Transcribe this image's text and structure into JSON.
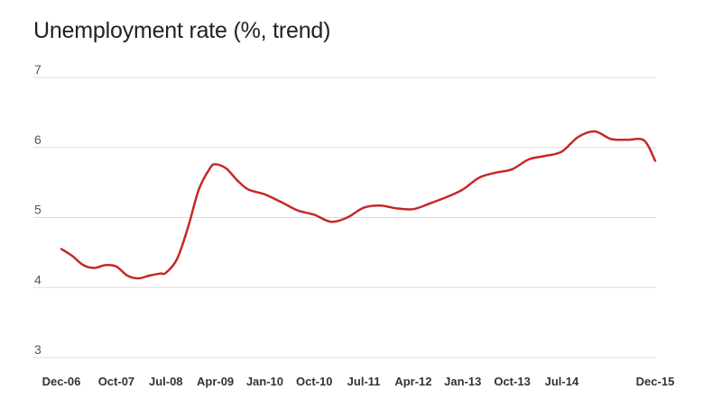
{
  "chart_data": {
    "type": "line",
    "title": "Unemployment rate (%, trend)",
    "xlabel": "",
    "ylabel": "",
    "ylim": [
      3,
      7
    ],
    "yticks": [
      "3",
      "4",
      "5",
      "6",
      "7"
    ],
    "grid": "horizontal",
    "line_color": "#c62828",
    "categories": [
      "Dec-06",
      "Oct-07",
      "Jul-08",
      "Apr-09",
      "Jan-10",
      "Oct-10",
      "Jul-11",
      "Apr-12",
      "Jan-13",
      "Oct-13",
      "Jul-14",
      "Dec-15"
    ],
    "x_start": "Dec-06",
    "x_end": "Dec-15",
    "series": [
      {
        "values": [
          [
            "Dec-06",
            4.55
          ],
          [
            "Feb-07",
            4.45
          ],
          [
            "Apr-07",
            4.32
          ],
          [
            "Jun-07",
            4.28
          ],
          [
            "Aug-07",
            4.32
          ],
          [
            "Oct-07",
            4.3
          ],
          [
            "Dec-07",
            4.17
          ],
          [
            "Feb-08",
            4.13
          ],
          [
            "Apr-08",
            4.17
          ],
          [
            "Jun-08",
            4.2
          ],
          [
            "Jul-08",
            4.21
          ],
          [
            "Sep-08",
            4.4
          ],
          [
            "Nov-08",
            4.85
          ],
          [
            "Jan-09",
            5.4
          ],
          [
            "Mar-09",
            5.7
          ],
          [
            "Apr-09",
            5.76
          ],
          [
            "Jun-09",
            5.7
          ],
          [
            "Aug-09",
            5.53
          ],
          [
            "Oct-09",
            5.4
          ],
          [
            "Jan-10",
            5.33
          ],
          [
            "Apr-10",
            5.22
          ],
          [
            "Jul-10",
            5.1
          ],
          [
            "Oct-10",
            5.04
          ],
          [
            "Jan-11",
            4.94
          ],
          [
            "Apr-11",
            5.0
          ],
          [
            "Jul-11",
            5.14
          ],
          [
            "Oct-11",
            5.17
          ],
          [
            "Jan-12",
            5.13
          ],
          [
            "Apr-12",
            5.12
          ],
          [
            "Jul-12",
            5.2
          ],
          [
            "Oct-12",
            5.29
          ],
          [
            "Jan-13",
            5.4
          ],
          [
            "Apr-13",
            5.57
          ],
          [
            "Jul-13",
            5.64
          ],
          [
            "Oct-13",
            5.69
          ],
          [
            "Jan-14",
            5.83
          ],
          [
            "Apr-14",
            5.88
          ],
          [
            "Jul-14",
            5.94
          ],
          [
            "Oct-14",
            6.15
          ],
          [
            "Jan-15",
            6.23
          ],
          [
            "Apr-15",
            6.12
          ],
          [
            "Jul-15",
            6.11
          ],
          [
            "Oct-15",
            6.1
          ],
          [
            "Dec-15",
            5.81
          ]
        ]
      }
    ]
  }
}
